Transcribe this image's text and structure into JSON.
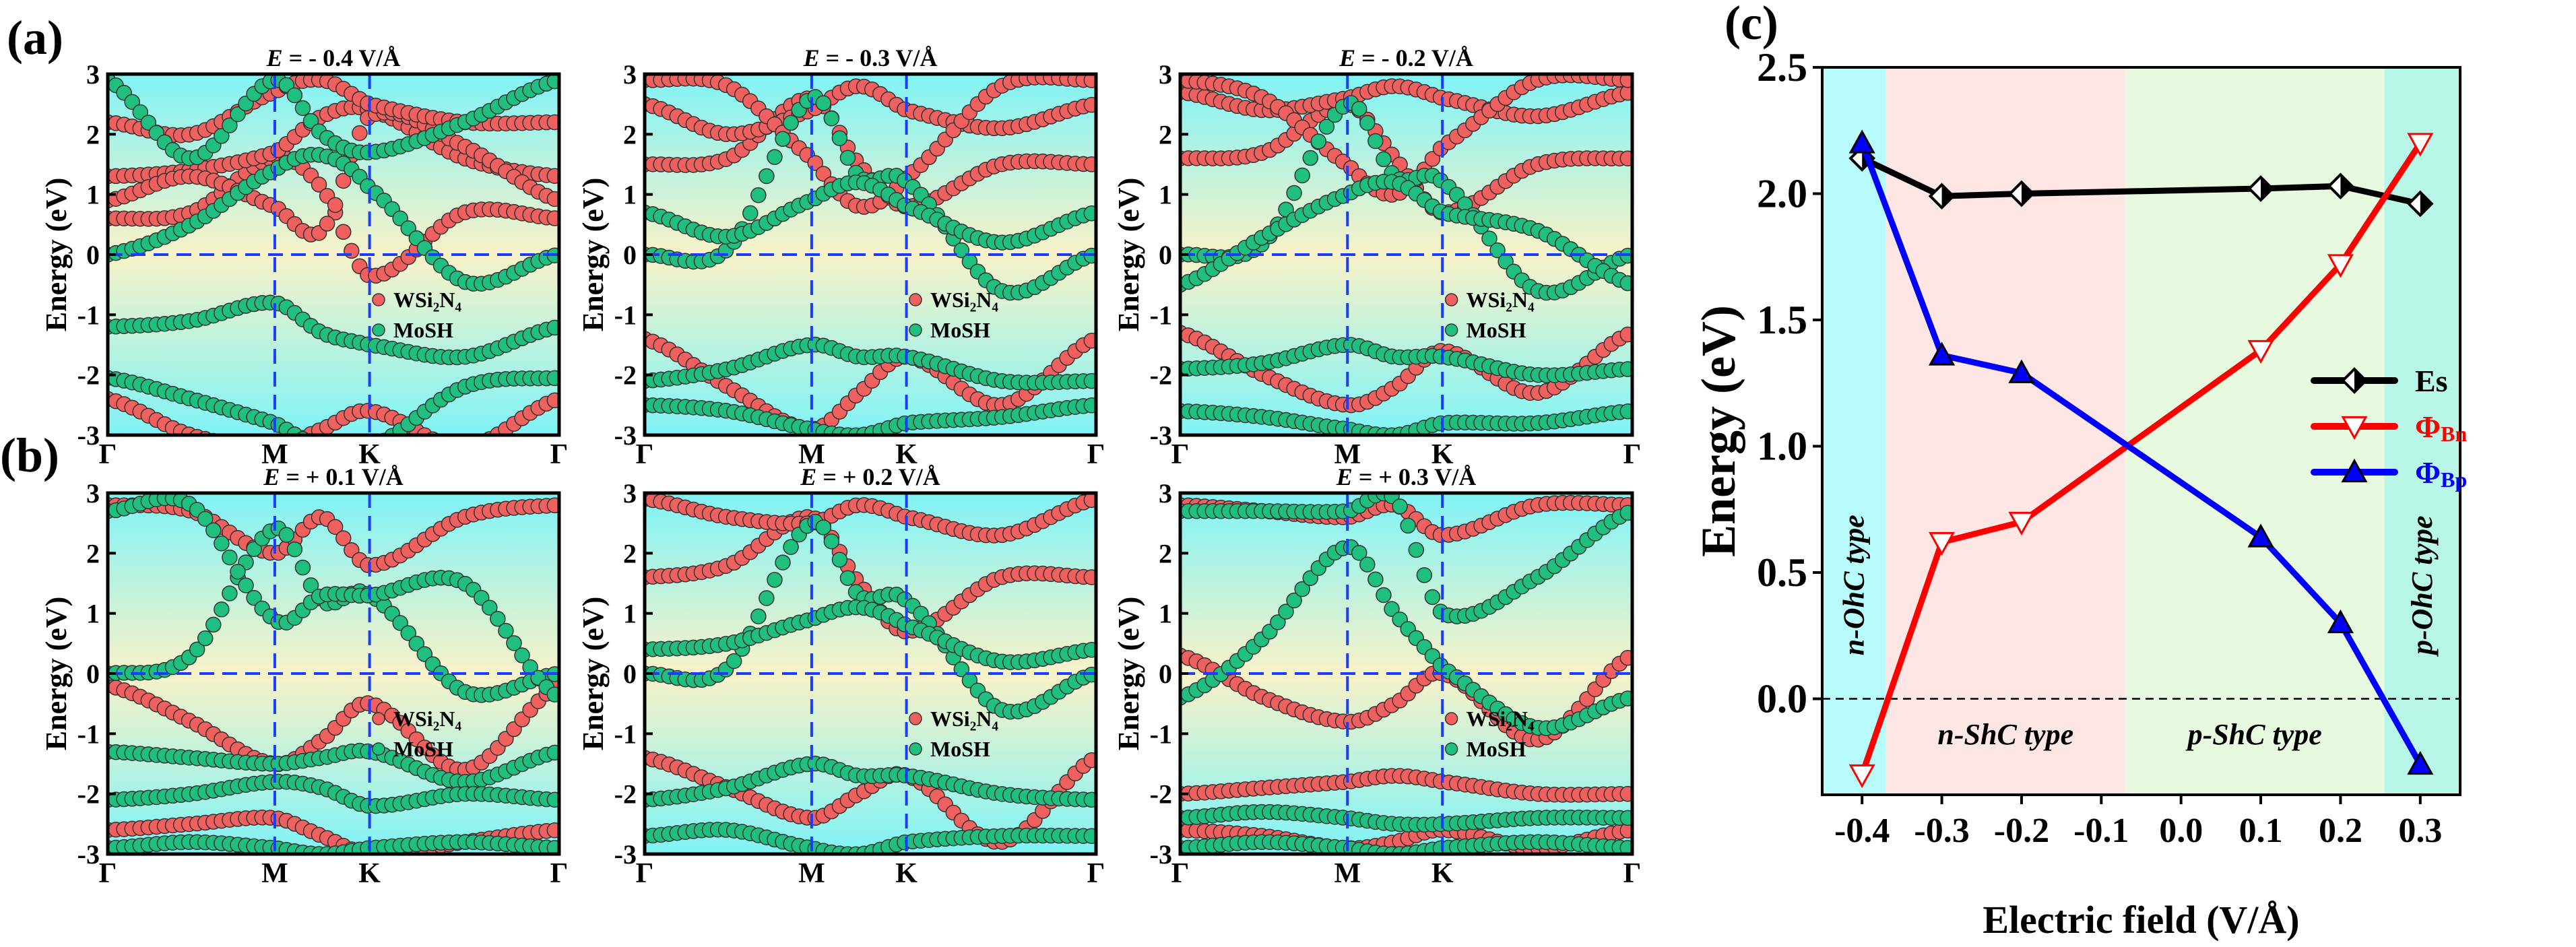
{
  "panel_labels": {
    "a": "(a)",
    "b": "(b)",
    "c": "(c)"
  },
  "band_common": {
    "ylabel": "Energy (eV)",
    "yticks": [
      "3",
      "2",
      "1",
      "0",
      "-1",
      "-2",
      "-3"
    ],
    "kpoints": [
      "Γ",
      "M",
      "K",
      "Γ"
    ],
    "legend": [
      "WSi₂N₄",
      "MoSH"
    ],
    "colors": {
      "WSi2N4": "#f0605e",
      "MoSH": "#1fbf7f",
      "guide": "#1a3cff"
    }
  },
  "chart_data": [
    {
      "type": "band",
      "title_prefix": "E",
      "title": " = - 0.4 V/Å",
      "ylim": [
        -3,
        3
      ],
      "k": [
        0,
        0.185,
        0.37,
        0.475,
        0.58,
        0.79,
        1
      ],
      "bands": [
        {
          "m": "WSi2N4",
          "e": [
            0.6,
            0.7,
            1.6,
            1.1,
            -0.35,
            0.7,
            0.6
          ]
        },
        {
          "m": "WSi2N4",
          "e": [
            1.3,
            1.4,
            1.7,
            2.3,
            2.4,
            1.6,
            1.3
          ]
        },
        {
          "m": "WSi2N4",
          "e": [
            0.9,
            1.3,
            0.8,
            0.4,
            2.3,
            1.8,
            0.9
          ]
        },
        {
          "m": "WSi2N4",
          "e": [
            2.2,
            2.0,
            2.7,
            2.9,
            2.5,
            2.2,
            2.2
          ]
        },
        {
          "m": "WSi2N4",
          "e": [
            -2.4,
            -3,
            -3.2,
            -2.9,
            -2.6,
            -3.2,
            -2.4
          ]
        },
        {
          "m": "MoSH",
          "e": [
            0,
            0.5,
            1.4,
            1.65,
            1.1,
            -0.45,
            0
          ]
        },
        {
          "m": "MoSH",
          "e": [
            2.9,
            1.6,
            2.9,
            2.0,
            1.7,
            2.2,
            2.9
          ]
        },
        {
          "m": "MoSH",
          "e": [
            -1.2,
            -1.1,
            -0.8,
            -1.3,
            -1.5,
            -1.7,
            -1.2
          ]
        },
        {
          "m": "MoSH",
          "e": [
            -2.05,
            -2.4,
            -2.8,
            -3.2,
            -3.2,
            -2.2,
            -2.05
          ]
        }
      ]
    },
    {
      "type": "band",
      "title_prefix": "E",
      "title": " = - 0.3 V/Å",
      "ylim": [
        -3,
        3
      ],
      "k": [
        0,
        0.185,
        0.37,
        0.475,
        0.58,
        0.79,
        1
      ],
      "bands": [
        {
          "m": "WSi2N4",
          "e": [
            1.5,
            1.6,
            2.6,
            1.5,
            0.8,
            1.5,
            1.5
          ]
        },
        {
          "m": "WSi2N4",
          "e": [
            2.5,
            2.0,
            2.4,
            2.8,
            2.4,
            2.1,
            2.5
          ]
        },
        {
          "m": "WSi2N4",
          "e": [
            2.9,
            2.8,
            1.6,
            0.8,
            1.3,
            2.8,
            2.9
          ]
        },
        {
          "m": "WSi2N4",
          "e": [
            -1.4,
            -2.2,
            -2.9,
            -2.3,
            -1.7,
            -2.5,
            -1.4
          ]
        },
        {
          "m": "MoSH",
          "e": [
            0,
            0.1,
            2.6,
            1.3,
            1.2,
            -0.6,
            0
          ]
        },
        {
          "m": "MoSH",
          "e": [
            0.7,
            0.3,
            0.9,
            1.2,
            0.8,
            0.2,
            0.7
          ]
        },
        {
          "m": "MoSH",
          "e": [
            -2.1,
            -1.9,
            -1.5,
            -1.7,
            -1.7,
            -2.1,
            -2.1
          ]
        },
        {
          "m": "MoSH",
          "e": [
            -2.5,
            -2.6,
            -2.9,
            -3.0,
            -2.8,
            -2.7,
            -2.5
          ]
        }
      ]
    },
    {
      "type": "band",
      "title_prefix": "E",
      "title": " = - 0.2 V/Å",
      "ylim": [
        -3,
        3
      ],
      "k": [
        0,
        0.185,
        0.37,
        0.475,
        0.58,
        0.79,
        1
      ],
      "bands": [
        {
          "m": "WSi2N4",
          "e": [
            1.6,
            1.7,
            2.5,
            1.6,
            0.7,
            1.5,
            1.6
          ]
        },
        {
          "m": "WSi2N4",
          "e": [
            2.7,
            2.4,
            2.6,
            2.8,
            2.6,
            2.3,
            2.7
          ]
        },
        {
          "m": "WSi2N4",
          "e": [
            2.9,
            2.6,
            1.5,
            1.0,
            1.8,
            2.9,
            2.9
          ]
        },
        {
          "m": "WSi2N4",
          "e": [
            -1.3,
            -2.0,
            -2.5,
            -2.2,
            -1.6,
            -2.3,
            -1.3
          ]
        },
        {
          "m": "MoSH",
          "e": [
            0,
            0.2,
            2.5,
            1.3,
            1.2,
            -0.6,
            0
          ]
        },
        {
          "m": "MoSH",
          "e": [
            -0.5,
            0.3,
            1.0,
            1.2,
            0.7,
            0.4,
            -0.5
          ]
        },
        {
          "m": "MoSH",
          "e": [
            -1.9,
            -1.8,
            -1.5,
            -1.7,
            -1.7,
            -2.0,
            -1.9
          ]
        },
        {
          "m": "MoSH",
          "e": [
            -2.6,
            -2.7,
            -2.9,
            -3.0,
            -2.8,
            -2.8,
            -2.6
          ]
        }
      ]
    },
    {
      "type": "band",
      "title_prefix": "E",
      "title": " = + 0.1 V/Å",
      "ylim": [
        -3,
        3
      ],
      "k": [
        0,
        0.185,
        0.37,
        0.475,
        0.58,
        0.79,
        1
      ],
      "bands": [
        {
          "m": "WSi2N4",
          "e": [
            -0.2,
            -0.8,
            -1.5,
            -1.1,
            -0.5,
            -1.6,
            -0.2
          ]
        },
        {
          "m": "WSi2N4",
          "e": [
            2.8,
            2.7,
            2.0,
            2.6,
            1.8,
            2.6,
            2.8
          ]
        },
        {
          "m": "WSi2N4",
          "e": [
            -2.6,
            -2.5,
            -2.4,
            -2.7,
            -3.0,
            -2.8,
            -2.6
          ]
        },
        {
          "m": "MoSH",
          "e": [
            0,
            0.3,
            2.4,
            1.2,
            1.3,
            -0.3,
            0
          ]
        },
        {
          "m": "MoSH",
          "e": [
            2.7,
            2.8,
            0.9,
            1.3,
            1.3,
            1.5,
            -0.4
          ]
        },
        {
          "m": "MoSH",
          "e": [
            -1.3,
            -1.4,
            -1.5,
            -1.4,
            -1.3,
            -1.8,
            -1.3
          ]
        },
        {
          "m": "MoSH",
          "e": [
            -2.1,
            -2.0,
            -1.8,
            -1.9,
            -2.2,
            -2.0,
            -2.1
          ]
        },
        {
          "m": "MoSH",
          "e": [
            -2.9,
            -2.8,
            -2.9,
            -3.0,
            -2.9,
            -2.8,
            -2.9
          ]
        }
      ]
    },
    {
      "type": "band",
      "title_prefix": "E",
      "title": " = + 0.2 V/Å",
      "ylim": [
        -3,
        3
      ],
      "k": [
        0,
        0.185,
        0.37,
        0.475,
        0.58,
        0.79,
        1
      ],
      "bands": [
        {
          "m": "WSi2N4",
          "e": [
            1.6,
            1.8,
            2.6,
            1.5,
            0.7,
            1.6,
            1.6
          ]
        },
        {
          "m": "WSi2N4",
          "e": [
            2.9,
            2.6,
            2.5,
            2.8,
            2.6,
            2.3,
            2.9
          ]
        },
        {
          "m": "WSi2N4",
          "e": [
            -1.4,
            -1.9,
            -2.4,
            -2.0,
            -1.7,
            -2.8,
            -1.4
          ]
        },
        {
          "m": "MoSH",
          "e": [
            0,
            0.1,
            2.5,
            1.3,
            1.2,
            -0.6,
            0
          ]
        },
        {
          "m": "MoSH",
          "e": [
            0.4,
            0.5,
            0.9,
            1.1,
            0.8,
            0.2,
            0.4
          ]
        },
        {
          "m": "MoSH",
          "e": [
            -2.1,
            -1.9,
            -1.5,
            -1.7,
            -1.7,
            -2.0,
            -2.1
          ]
        },
        {
          "m": "MoSH",
          "e": [
            -2.7,
            -2.6,
            -2.9,
            -3.0,
            -2.8,
            -2.7,
            -2.7
          ]
        }
      ]
    },
    {
      "type": "band",
      "title_prefix": "E",
      "title": " = + 0.3 V/Å",
      "ylim": [
        -3,
        3
      ],
      "k": [
        0,
        0.185,
        0.37,
        0.475,
        0.58,
        0.79,
        1
      ],
      "bands": [
        {
          "m": "WSi2N4",
          "e": [
            0.3,
            -0.4,
            -0.8,
            -0.5,
            0,
            -1.1,
            0.3
          ]
        },
        {
          "m": "WSi2N4",
          "e": [
            2.8,
            2.7,
            2.6,
            2.8,
            2.3,
            2.8,
            2.8
          ]
        },
        {
          "m": "WSi2N4",
          "e": [
            -2.0,
            -1.9,
            -1.8,
            -1.7,
            -1.8,
            -2.0,
            -2.0
          ]
        },
        {
          "m": "WSi2N4",
          "e": [
            -2.6,
            -2.7,
            -2.9,
            -2.8,
            -2.6,
            -2.9,
            -2.6
          ]
        },
        {
          "m": "MoSH",
          "e": [
            -0.4,
            0.6,
            2.1,
            1.0,
            0.1,
            -0.9,
            -0.4
          ]
        },
        {
          "m": "MoSH",
          "e": [
            2.7,
            2.7,
            2.7,
            2.9,
            1.0,
            1.6,
            2.7
          ]
        },
        {
          "m": "MoSH",
          "e": [
            -2.4,
            -2.3,
            -2.4,
            -2.5,
            -2.5,
            -2.4,
            -2.4
          ]
        },
        {
          "m": "MoSH",
          "e": [
            -2.9,
            -2.8,
            -2.9,
            -3.0,
            -2.9,
            -2.8,
            -2.9
          ]
        }
      ]
    },
    {
      "type": "line",
      "xlabel": "Electric field (V/Å)",
      "ylabel": "Energy (eV)",
      "xlim": [
        -0.45,
        0.35
      ],
      "ylim": [
        -0.38,
        2.5
      ],
      "xticks": [
        "-0.4",
        "-0.3",
        "-0.2",
        "-0.1",
        "0.0",
        "0.1",
        "0.2",
        "0.3"
      ],
      "yticks": [
        "2.5",
        "2.0",
        "1.5",
        "1.0",
        "0.5",
        "0.0"
      ],
      "x": [
        -0.4,
        -0.3,
        -0.2,
        0.1,
        0.2,
        0.3
      ],
      "series": [
        {
          "name": "Es",
          "sub": "",
          "color": "#000000",
          "marker": "diamond",
          "values": [
            2.14,
            1.99,
            2.0,
            2.02,
            2.03,
            1.96
          ]
        },
        {
          "name": "Φ",
          "sub": "Bn",
          "color": "#ff0000",
          "marker": "triangle-down-open",
          "values": [
            -0.3,
            0.62,
            0.7,
            1.38,
            1.72,
            2.2
          ]
        },
        {
          "name": "Φ",
          "sub": "Bp",
          "color": "#0000ff",
          "marker": "triangle-up",
          "values": [
            2.2,
            1.36,
            1.29,
            0.64,
            0.3,
            -0.26
          ]
        }
      ],
      "regions": [
        {
          "label": "n-OhC type",
          "from": -0.45,
          "to": -0.37,
          "color": "#b8fbfb",
          "vertical": true
        },
        {
          "label": "n-ShC type",
          "from": -0.37,
          "to": -0.07,
          "color": "#fde6e4",
          "vertical": false
        },
        {
          "label": "p-ShC type",
          "from": -0.07,
          "to": 0.255,
          "color": "#e7f9df",
          "vertical": false
        },
        {
          "label": "p-OhC type",
          "from": 0.255,
          "to": 0.35,
          "color": "#b8f6e8",
          "vertical": true
        }
      ],
      "legend_position": "center-right",
      "zero_line": "dashed"
    }
  ]
}
